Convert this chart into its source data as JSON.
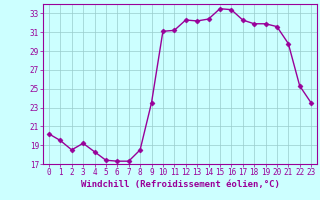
{
  "x": [
    0,
    1,
    2,
    3,
    4,
    5,
    6,
    7,
    8,
    9,
    10,
    11,
    12,
    13,
    14,
    15,
    16,
    17,
    18,
    19,
    20,
    21,
    22,
    23
  ],
  "y": [
    20.2,
    19.5,
    18.5,
    19.2,
    18.3,
    17.4,
    17.3,
    17.3,
    18.5,
    23.5,
    31.1,
    31.2,
    32.3,
    32.2,
    32.4,
    33.5,
    33.4,
    32.3,
    31.9,
    31.9,
    31.6,
    29.8,
    25.3,
    23.5
  ],
  "line_color": "#990099",
  "marker": "D",
  "markersize": 2.5,
  "linewidth": 1.0,
  "background_color": "#ccffff",
  "grid_color": "#99cccc",
  "xlabel": "Windchill (Refroidissement éolien,°C)",
  "xlabel_fontsize": 6.5,
  "tick_fontsize": 5.5,
  "ylim": [
    17,
    34
  ],
  "yticks": [
    17,
    19,
    21,
    23,
    25,
    27,
    29,
    31,
    33
  ],
  "xlim": [
    -0.5,
    23.5
  ],
  "xticks": [
    0,
    1,
    2,
    3,
    4,
    5,
    6,
    7,
    8,
    9,
    10,
    11,
    12,
    13,
    14,
    15,
    16,
    17,
    18,
    19,
    20,
    21,
    22,
    23
  ]
}
